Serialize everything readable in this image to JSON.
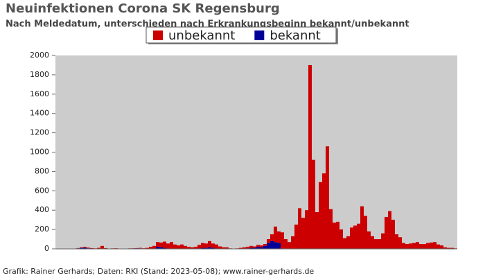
{
  "chart_data": {
    "type": "stacked_bar",
    "title": "Neuinfektionen Corona SK Regensburg",
    "subtitle": "Nach Meldedatum, unterschieden nach Erkrankungsbeginn bekannt/unbekannt",
    "footer": "Grafik: Rainer Gerhards; Daten: RKI (Stand: 2023-05-08); www.rainer-gerhards.de",
    "legend": "top",
    "categories": [
      null,
      null,
      null,
      null,
      null,
      null,
      null,
      null,
      null,
      null,
      null,
      null,
      null,
      null,
      null,
      null,
      null,
      null,
      null,
      null,
      null,
      null,
      null,
      null,
      null,
      null,
      null,
      null,
      null,
      null,
      null,
      null,
      null,
      null,
      null,
      null,
      null,
      null,
      null,
      null,
      null,
      null,
      null,
      null,
      null,
      null,
      null,
      null,
      null,
      null,
      null,
      null,
      null,
      null,
      null,
      null,
      null,
      null,
      null,
      null,
      null,
      null,
      null,
      null,
      null,
      null,
      null,
      null,
      null,
      null,
      null,
      null,
      null,
      null,
      null,
      null,
      null,
      null,
      null,
      null,
      null,
      null,
      null,
      null,
      null,
      null,
      null,
      null,
      null,
      null,
      null,
      null,
      null,
      null,
      null,
      null,
      null,
      null,
      null,
      null,
      null,
      null,
      null,
      null,
      null,
      null,
      null,
      null,
      null,
      null,
      null,
      null,
      null,
      null,
      null,
      null
    ],
    "series": [
      {
        "name": "unbekannt",
        "color": "#cc0000",
        "values": [
          0,
          0,
          0,
          0,
          0,
          0,
          3,
          5,
          8,
          6,
          8,
          5,
          10,
          30,
          8,
          3,
          5,
          6,
          3,
          0,
          2,
          5,
          2,
          2,
          5,
          6,
          10,
          20,
          30,
          50,
          50,
          65,
          55,
          70,
          45,
          35,
          45,
          30,
          20,
          15,
          20,
          40,
          50,
          45,
          65,
          45,
          45,
          25,
          15,
          15,
          5,
          3,
          5,
          10,
          15,
          20,
          20,
          15,
          20,
          20,
          20,
          40,
          70,
          160,
          120,
          170,
          100,
          70,
          130,
          250,
          420,
          320,
          400,
          1900,
          920,
          380,
          690,
          780,
          1060,
          410,
          270,
          280,
          200,
          110,
          130,
          220,
          240,
          260,
          440,
          340,
          180,
          130,
          100,
          100,
          160,
          330,
          390,
          300,
          150,
          120,
          60,
          50,
          55,
          60,
          70,
          50,
          50,
          60,
          65,
          70,
          45,
          35,
          15,
          10,
          10,
          5
        ]
      },
      {
        "name": "bekannt",
        "color": "#000099",
        "values": [
          0,
          0,
          0,
          0,
          0,
          0,
          5,
          10,
          12,
          6,
          0,
          0,
          0,
          0,
          0,
          0,
          0,
          0,
          0,
          0,
          0,
          0,
          4,
          6,
          5,
          0,
          0,
          0,
          0,
          20,
          15,
          10,
          0,
          0,
          0,
          0,
          0,
          0,
          0,
          0,
          0,
          0,
          10,
          10,
          15,
          10,
          0,
          0,
          0,
          0,
          0,
          0,
          0,
          0,
          0,
          0,
          10,
          10,
          20,
          15,
          30,
          60,
          80,
          70,
          60,
          0,
          0,
          0,
          0,
          0,
          0,
          0,
          0,
          0,
          0,
          0,
          0,
          0,
          0,
          0,
          0,
          0,
          0,
          0,
          0,
          0,
          0,
          0,
          0,
          0,
          0,
          0,
          0,
          0,
          0,
          0,
          0,
          0,
          0,
          0,
          0,
          0,
          0,
          0,
          0,
          0,
          0,
          0,
          0,
          0,
          0,
          0,
          0,
          0,
          0,
          0
        ]
      }
    ],
    "ylim": [
      0,
      2000
    ],
    "yticks": [
      0,
      200,
      400,
      600,
      800,
      1000,
      1200,
      1400,
      1600,
      1800,
      2000
    ]
  }
}
